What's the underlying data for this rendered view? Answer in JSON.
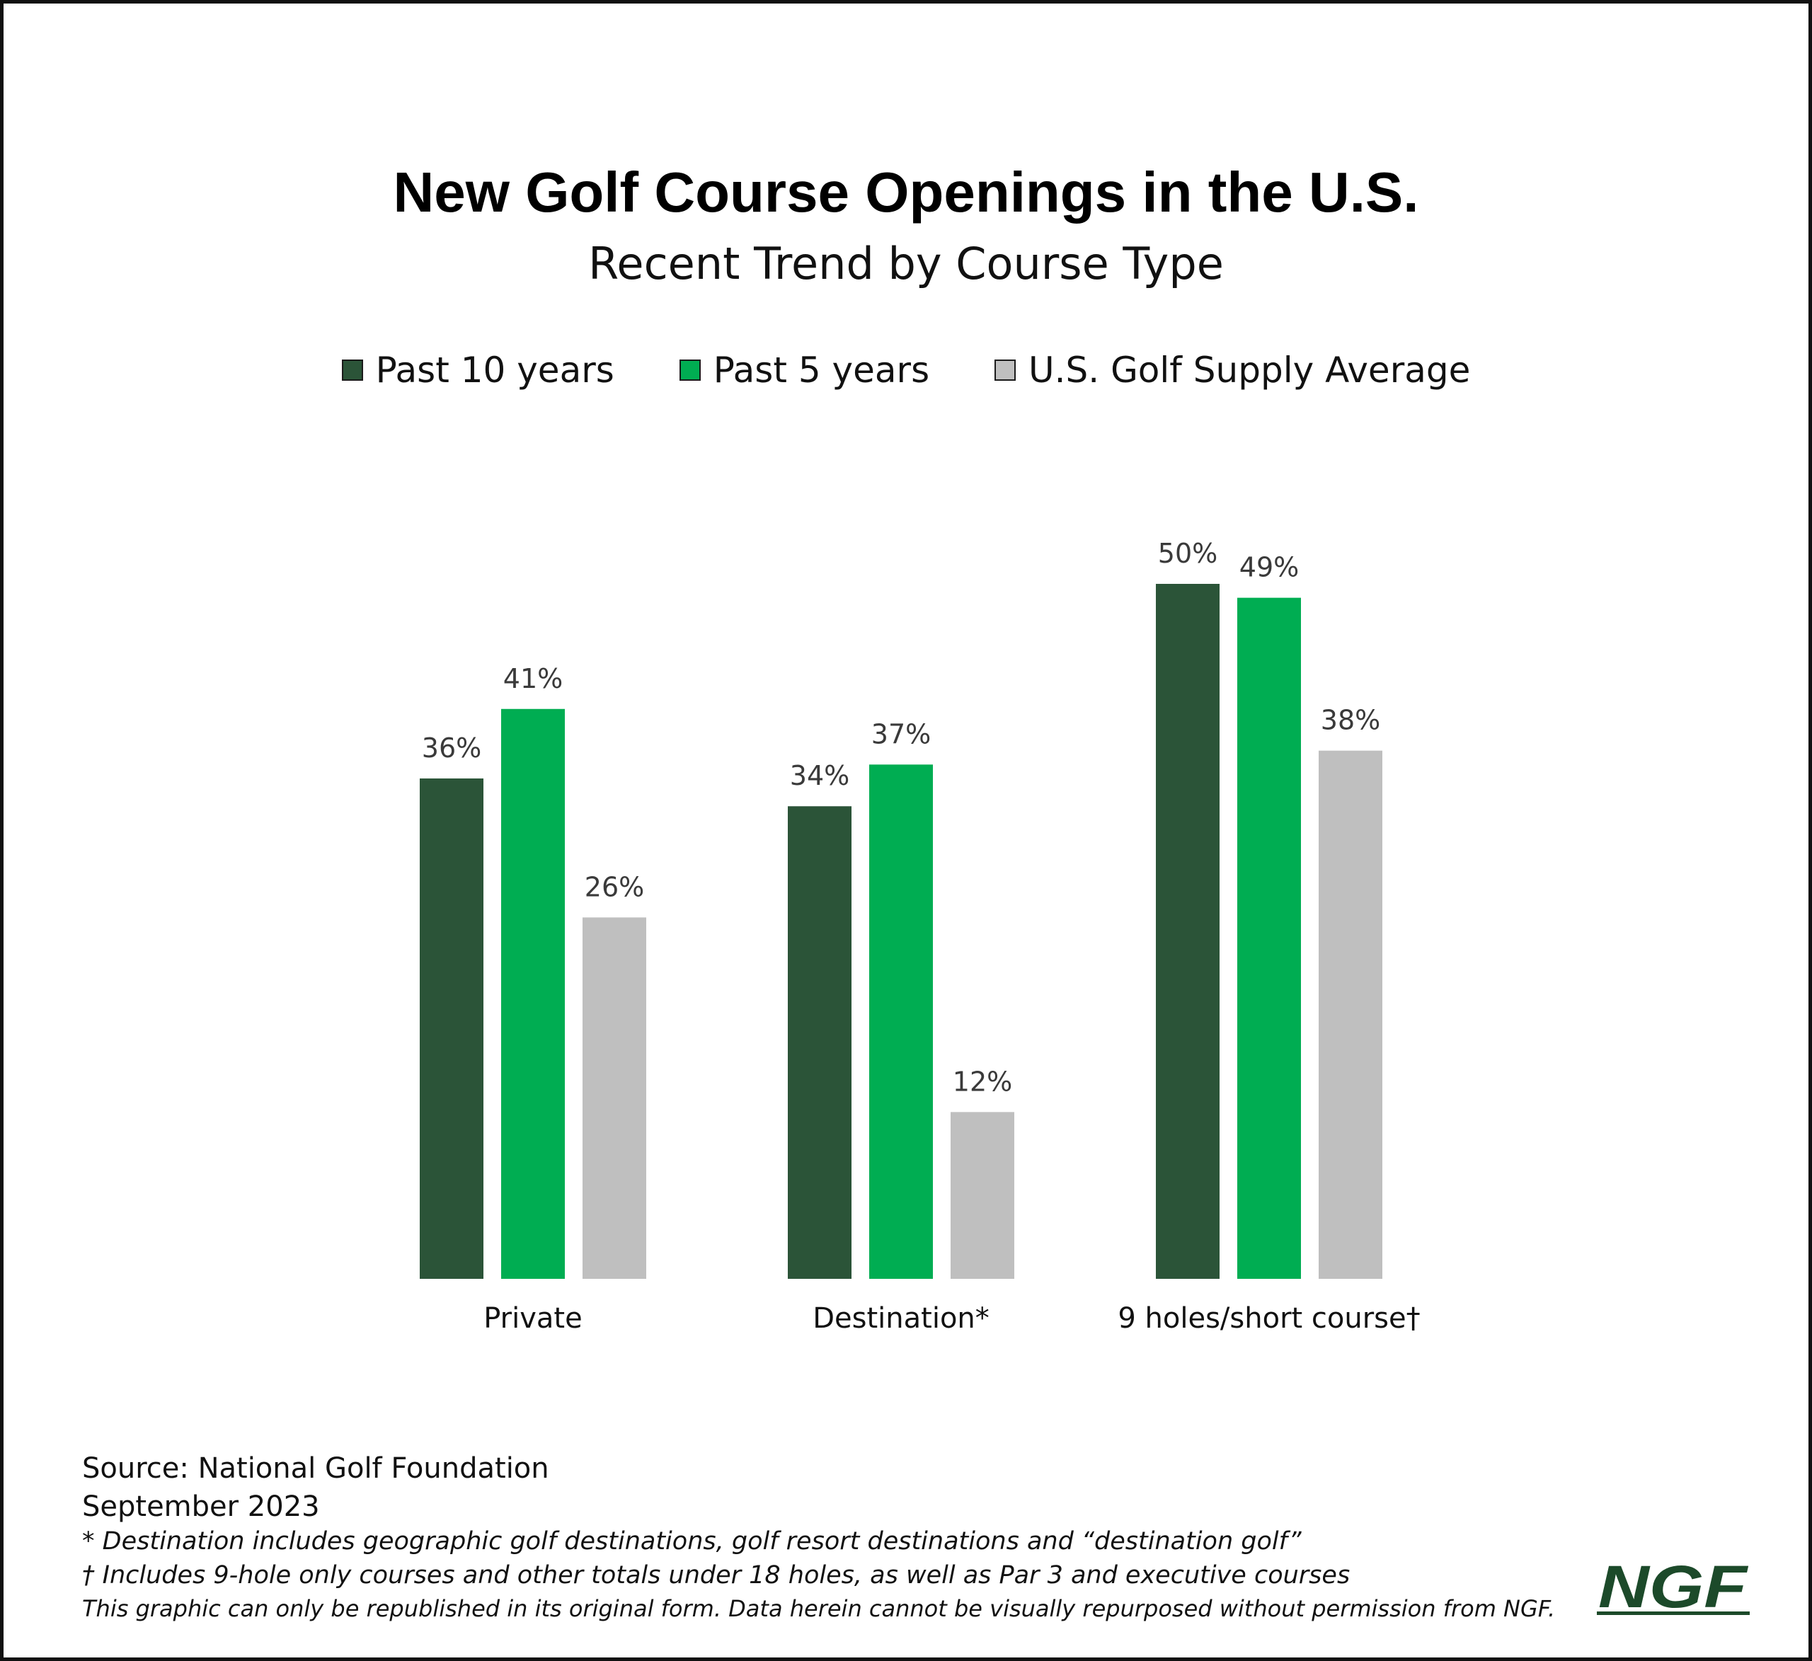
{
  "header": {
    "title": "New Golf Course Openings in the U.S.",
    "subtitle": "Recent Trend by Course Type"
  },
  "legend": [
    {
      "label": "Past 10 years",
      "color": "#2b5438"
    },
    {
      "label": "Past 5 years",
      "color": "#00ad52"
    },
    {
      "label": "U.S. Golf Supply Average",
      "color": "#bfbfbf"
    }
  ],
  "chart_data": {
    "type": "bar",
    "title": "New Golf Course Openings in the U.S.",
    "subtitle": "Recent Trend by Course Type",
    "categories": [
      "Private",
      "Destination*",
      "9 holes/short course†"
    ],
    "series": [
      {
        "name": "Past 10 years",
        "values": [
          36,
          34,
          50
        ],
        "labels": [
          "36%",
          "34%",
          "50%"
        ],
        "color": "#2b5438"
      },
      {
        "name": "Past 5 years",
        "values": [
          41,
          37,
          49
        ],
        "labels": [
          "41%",
          "37%",
          "49%"
        ],
        "color": "#00ad52"
      },
      {
        "name": "U.S. Golf Supply Average",
        "values": [
          26,
          12,
          38
        ],
        "labels": [
          "26%",
          "12%",
          "38%"
        ],
        "color": "#bfbfbf"
      }
    ],
    "unit": "%",
    "ylim": [
      0,
      50
    ],
    "grid": false,
    "legend_position": "top-center"
  },
  "footer": {
    "source": "Source: National Golf Foundation",
    "date": "September 2023",
    "note_destination": "* Destination includes geographic golf destinations, golf resort destinations and “destination golf”",
    "note_short": "† Includes 9-hole only courses and other totals under 18 holes, as well as Par 3 and executive courses",
    "note_rights": "This graphic can only be republished in its original form. Data herein cannot be visually repurposed without permission from NGF."
  },
  "logo": {
    "text": "NGF",
    "color": "#1c4a2a"
  }
}
